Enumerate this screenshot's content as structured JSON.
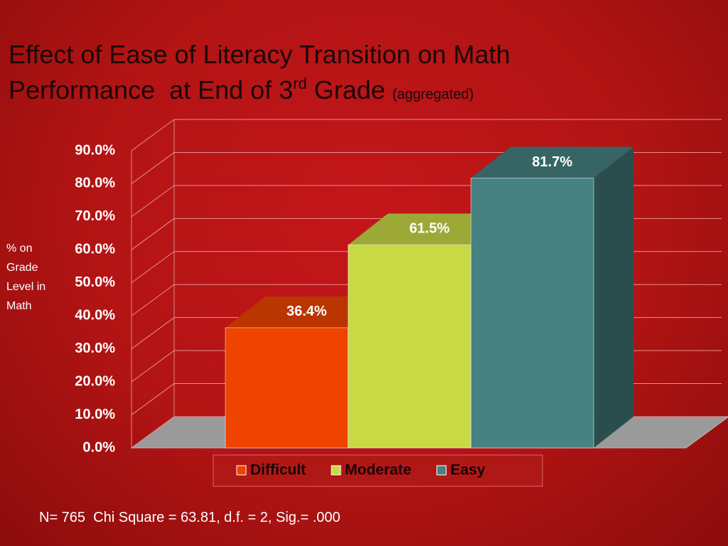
{
  "chart_data": {
    "type": "bar",
    "title": [
      "Effect of Ease of Literacy Transition on Math",
      "Performance  at End of 3",
      "rd",
      " Grade",
      "(aggregated)"
    ],
    "ylabel": "% on Grade Level in Math",
    "annotation": "N= 765  Chi Square = 63.81, d.f. = 2, Sig.= .000",
    "series": [
      {
        "name": "Difficult",
        "color": "#ee4400",
        "values": [
          36.4
        ],
        "value_labels": [
          "36.4%"
        ]
      },
      {
        "name": "Moderate",
        "color": "#c8d946",
        "values": [
          61.5
        ],
        "value_labels": [
          "61.5%"
        ]
      },
      {
        "name": "Easy",
        "color": "#468282",
        "values": [
          81.7
        ],
        "value_labels": [
          "81.7%"
        ]
      }
    ],
    "ylim": [
      0,
      90
    ],
    "yticks": [
      {
        "value": 0,
        "label": "0.0%"
      },
      {
        "value": 10,
        "label": "10.0%"
      },
      {
        "value": 20,
        "label": "20.0%"
      },
      {
        "value": 30,
        "label": "30.0%"
      },
      {
        "value": 40,
        "label": "40.0%"
      },
      {
        "value": 50,
        "label": "50.0%"
      },
      {
        "value": 60,
        "label": "60.0%"
      },
      {
        "value": 70,
        "label": "70.0%"
      },
      {
        "value": 80,
        "label": "80.0%"
      },
      {
        "value": 90,
        "label": "90.0%"
      }
    ],
    "grid": true
  }
}
